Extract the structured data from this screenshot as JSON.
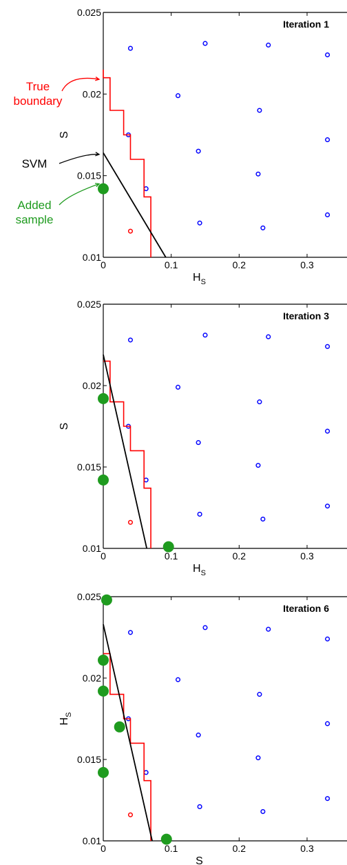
{
  "chart_data": [
    {
      "type": "scatter",
      "title": "Iteration 1",
      "xlabel": "H",
      "xlabel_sub": "S",
      "ylabel": "S",
      "ylabel_sub": "",
      "xlim": [
        0,
        0.375
      ],
      "ylim": [
        0.01,
        0.025
      ],
      "xticks": [
        0,
        0.1,
        0.2,
        0.3
      ],
      "xtick_labels": [
        "0",
        "0.1",
        "0.2",
        "0.3"
      ],
      "yticks": [
        0.01,
        0.015,
        0.02,
        0.025
      ],
      "ytick_labels": [
        "0.01",
        "0.015",
        "0.02",
        "0.025"
      ],
      "grid": false,
      "annotations": [
        {
          "lines": [
            "True",
            "boundary"
          ],
          "color": "#ff0000",
          "target": [
            0.0,
            0.0209
          ]
        },
        {
          "lines": [
            "SVM"
          ],
          "color": "#000000",
          "target": [
            0.0,
            0.0163
          ]
        },
        {
          "lines": [
            "Added",
            "sample"
          ],
          "color": "#1f9b1f",
          "target": [
            0.0,
            0.0145
          ]
        }
      ],
      "series": [
        {
          "role": "positive",
          "color": "#0000ff",
          "marker": "circle",
          "x": [
            0.04,
            0.15,
            0.243,
            0.33,
            0.11,
            0.23,
            0.037,
            0.14,
            0.33,
            0.063,
            0.228,
            0.142,
            0.235,
            0.33
          ],
          "y": [
            0.0228,
            0.0231,
            0.023,
            0.0224,
            0.0199,
            0.019,
            0.0175,
            0.0165,
            0.0172,
            0.0142,
            0.0151,
            0.0121,
            0.0118,
            0.0126
          ]
        },
        {
          "role": "negative",
          "color": "#ff0000",
          "marker": "circle",
          "x": [
            0.04
          ],
          "y": [
            0.0116
          ]
        },
        {
          "role": "added",
          "color": "#1f9b1f",
          "marker": "dot",
          "x": [
            0.0
          ],
          "y": [
            0.0142
          ]
        },
        {
          "role": "true-boundary",
          "color": "#ff0000",
          "type": "step",
          "x": [
            0.0,
            0.0,
            0.01,
            0.01,
            0.03,
            0.03,
            0.04,
            0.04,
            0.06,
            0.06,
            0.07,
            0.07
          ],
          "y": [
            0.0215,
            0.021,
            0.021,
            0.019,
            0.019,
            0.0175,
            0.0175,
            0.016,
            0.016,
            0.0137,
            0.0137,
            0.01
          ]
        },
        {
          "role": "svm",
          "color": "#000000",
          "type": "line",
          "x": [
            0.0,
            0.092
          ],
          "y": [
            0.0164,
            0.01
          ]
        }
      ]
    },
    {
      "type": "scatter",
      "title": "Iteration 3",
      "xlabel": "H",
      "xlabel_sub": "S",
      "ylabel": "S",
      "ylabel_sub": "",
      "xlim": [
        0,
        0.375
      ],
      "ylim": [
        0.01,
        0.025
      ],
      "xticks": [
        0,
        0.1,
        0.2,
        0.3
      ],
      "xtick_labels": [
        "0",
        "0.1",
        "0.2",
        "0.3"
      ],
      "yticks": [
        0.01,
        0.015,
        0.02,
        0.025
      ],
      "ytick_labels": [
        "0.01",
        "0.015",
        "0.02",
        "0.025"
      ],
      "grid": false,
      "annotations": [],
      "series": [
        {
          "role": "positive",
          "color": "#0000ff",
          "marker": "circle",
          "x": [
            0.04,
            0.15,
            0.243,
            0.33,
            0.11,
            0.23,
            0.037,
            0.14,
            0.33,
            0.063,
            0.228,
            0.142,
            0.235,
            0.33
          ],
          "y": [
            0.0228,
            0.0231,
            0.023,
            0.0224,
            0.0199,
            0.019,
            0.0175,
            0.0165,
            0.0172,
            0.0142,
            0.0151,
            0.0121,
            0.0118,
            0.0126
          ]
        },
        {
          "role": "negative",
          "color": "#ff0000",
          "marker": "circle",
          "x": [
            0.04
          ],
          "y": [
            0.0116
          ]
        },
        {
          "role": "added",
          "color": "#1f9b1f",
          "marker": "dot",
          "x": [
            0.0,
            0.0,
            0.096
          ],
          "y": [
            0.0192,
            0.0142,
            0.0101
          ]
        },
        {
          "role": "true-boundary",
          "color": "#ff0000",
          "type": "step",
          "x": [
            0.0,
            0.01,
            0.01,
            0.03,
            0.03,
            0.04,
            0.04,
            0.06,
            0.06,
            0.07,
            0.07
          ],
          "y": [
            0.0215,
            0.0215,
            0.019,
            0.019,
            0.0175,
            0.0175,
            0.016,
            0.016,
            0.0137,
            0.0137,
            0.01
          ]
        },
        {
          "role": "svm",
          "color": "#000000",
          "type": "line",
          "x": [
            0.0,
            0.064
          ],
          "y": [
            0.0219,
            0.01
          ]
        }
      ]
    },
    {
      "type": "scatter",
      "title": "Iteration 6",
      "xlabel": "S",
      "xlabel_sub": "",
      "ylabel": "H",
      "ylabel_sub": "S",
      "xlim": [
        0,
        0.375
      ],
      "ylim": [
        0.01,
        0.025
      ],
      "xticks": [
        0,
        0.1,
        0.2,
        0.3
      ],
      "xtick_labels": [
        "0",
        "0.1",
        "0.2",
        "0.3"
      ],
      "yticks": [
        0.01,
        0.015,
        0.02,
        0.025
      ],
      "ytick_labels": [
        "0.01",
        "0.015",
        "0.02",
        "0.025"
      ],
      "grid": false,
      "annotations": [],
      "series": [
        {
          "role": "positive",
          "color": "#0000ff",
          "marker": "circle",
          "x": [
            0.04,
            0.15,
            0.243,
            0.33,
            0.11,
            0.23,
            0.037,
            0.14,
            0.33,
            0.063,
            0.228,
            0.142,
            0.235,
            0.33
          ],
          "y": [
            0.0228,
            0.0231,
            0.023,
            0.0224,
            0.0199,
            0.019,
            0.0175,
            0.0165,
            0.0172,
            0.0142,
            0.0151,
            0.0121,
            0.0118,
            0.0126
          ]
        },
        {
          "role": "negative",
          "color": "#ff0000",
          "marker": "circle",
          "x": [
            0.04
          ],
          "y": [
            0.0116
          ]
        },
        {
          "role": "added",
          "color": "#1f9b1f",
          "marker": "dot",
          "x": [
            0.005,
            0.0,
            0.0,
            0.024,
            0.0,
            0.093
          ],
          "y": [
            0.0248,
            0.0211,
            0.0192,
            0.017,
            0.0142,
            0.0101
          ]
        },
        {
          "role": "true-boundary",
          "color": "#ff0000",
          "type": "step",
          "x": [
            0.0,
            0.01,
            0.01,
            0.03,
            0.03,
            0.04,
            0.04,
            0.06,
            0.06,
            0.07,
            0.07
          ],
          "y": [
            0.0215,
            0.0215,
            0.019,
            0.019,
            0.0175,
            0.0175,
            0.016,
            0.016,
            0.0137,
            0.0137,
            0.01
          ]
        },
        {
          "role": "svm",
          "color": "#000000",
          "type": "line",
          "x": [
            0.0,
            0.072
          ],
          "y": [
            0.0233,
            0.01
          ]
        }
      ]
    }
  ]
}
